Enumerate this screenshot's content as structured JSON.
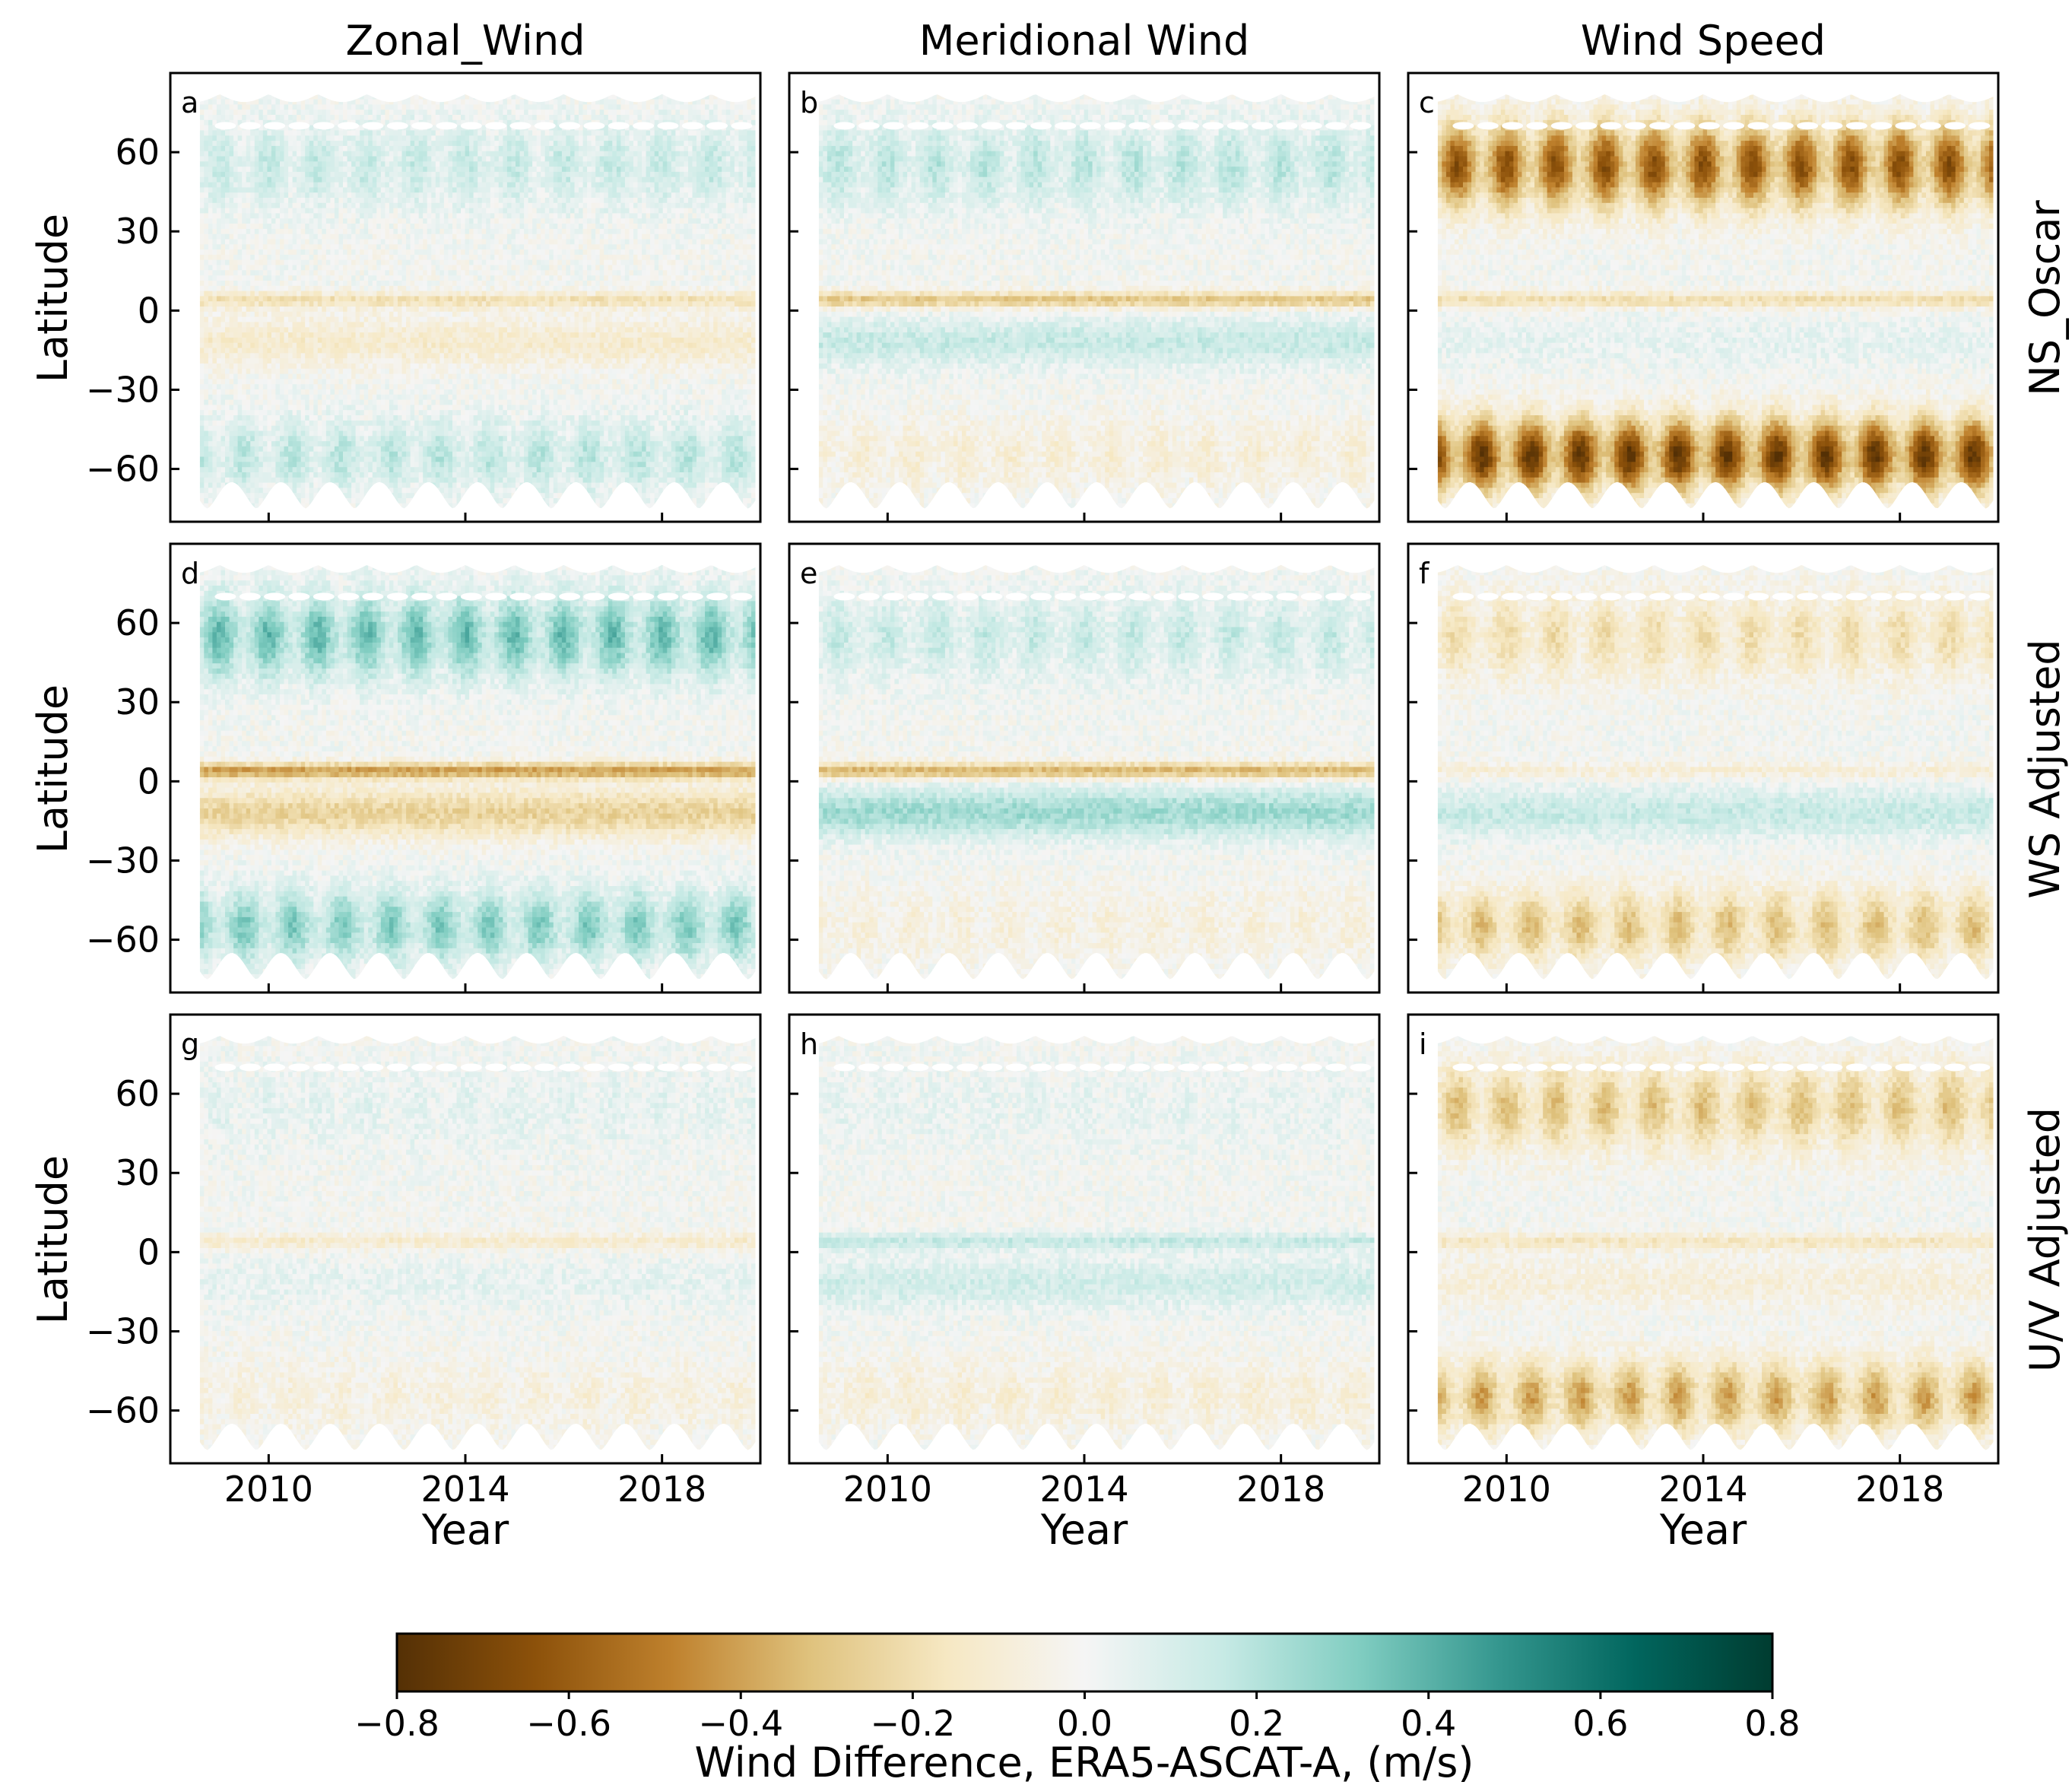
{
  "chart_data": {
    "type": "heatmap",
    "columns": [
      "Zonal_Wind",
      "Meridional Wind",
      "Wind Speed"
    ],
    "rows": [
      "NS_Oscar",
      "WS Adjusted",
      "U/V Adjusted"
    ],
    "ylabel": "Latitude",
    "xlabel": "Year",
    "yticks": [
      60,
      30,
      0,
      -30,
      -60
    ],
    "ytick_labels": [
      "60",
      "30",
      "0",
      "−30",
      "−60"
    ],
    "ylim": [
      -80,
      90
    ],
    "xticks": [
      2010,
      2014,
      2018
    ],
    "xtick_labels": [
      "2010",
      "2014",
      "2018"
    ],
    "xlim": [
      2008,
      2020
    ],
    "data_lat_range": [
      -75,
      82
    ],
    "data_year_range": [
      2008.6,
      2019.9
    ],
    "panels": [
      {
        "label": "a",
        "row": 0,
        "col": 0,
        "nh": 0.15,
        "sh": 0.18,
        "eq": -0.18,
        "trop": -0.12
      },
      {
        "label": "b",
        "row": 0,
        "col": 1,
        "nh": 0.18,
        "sh": -0.1,
        "eq": -0.3,
        "trop": 0.15
      },
      {
        "label": "c",
        "row": 0,
        "col": 2,
        "nh": -0.6,
        "sh": -0.7,
        "eq": -0.2,
        "trop": 0.05
      },
      {
        "label": "d",
        "row": 1,
        "col": 0,
        "nh": 0.35,
        "sh": 0.3,
        "eq": -0.4,
        "trop": -0.25
      },
      {
        "label": "e",
        "row": 1,
        "col": 1,
        "nh": 0.15,
        "sh": -0.08,
        "eq": -0.35,
        "trop": 0.25
      },
      {
        "label": "f",
        "row": 1,
        "col": 2,
        "nh": -0.2,
        "sh": -0.3,
        "eq": -0.1,
        "trop": 0.15
      },
      {
        "label": "g",
        "row": 2,
        "col": 0,
        "nh": 0.06,
        "sh": -0.08,
        "eq": -0.12,
        "trop": 0.05
      },
      {
        "label": "h",
        "row": 2,
        "col": 1,
        "nh": 0.05,
        "sh": -0.1,
        "eq": 0.15,
        "trop": 0.12
      },
      {
        "label": "i",
        "row": 2,
        "col": 2,
        "nh": -0.3,
        "sh": -0.38,
        "eq": -0.15,
        "trop": -0.08
      }
    ],
    "colorbar": {
      "min": -0.8,
      "max": 0.8,
      "ticks": [
        -0.8,
        -0.6,
        -0.4,
        -0.2,
        0.0,
        0.2,
        0.4,
        0.6,
        0.8
      ],
      "tick_labels": [
        "−0.8",
        "−0.6",
        "−0.4",
        "−0.2",
        "0.0",
        "0.2",
        "0.4",
        "0.6",
        "0.8"
      ],
      "label": "Wind Difference, ERA5-ASCAT-A, (m/s)",
      "colormap": "BrBG",
      "colors": [
        "#543005",
        "#8c510a",
        "#bf812d",
        "#dfc27d",
        "#f6e8c3",
        "#f5f5f5",
        "#c7eae5",
        "#80cdc1",
        "#35978f",
        "#01665e",
        "#003c30"
      ]
    }
  }
}
